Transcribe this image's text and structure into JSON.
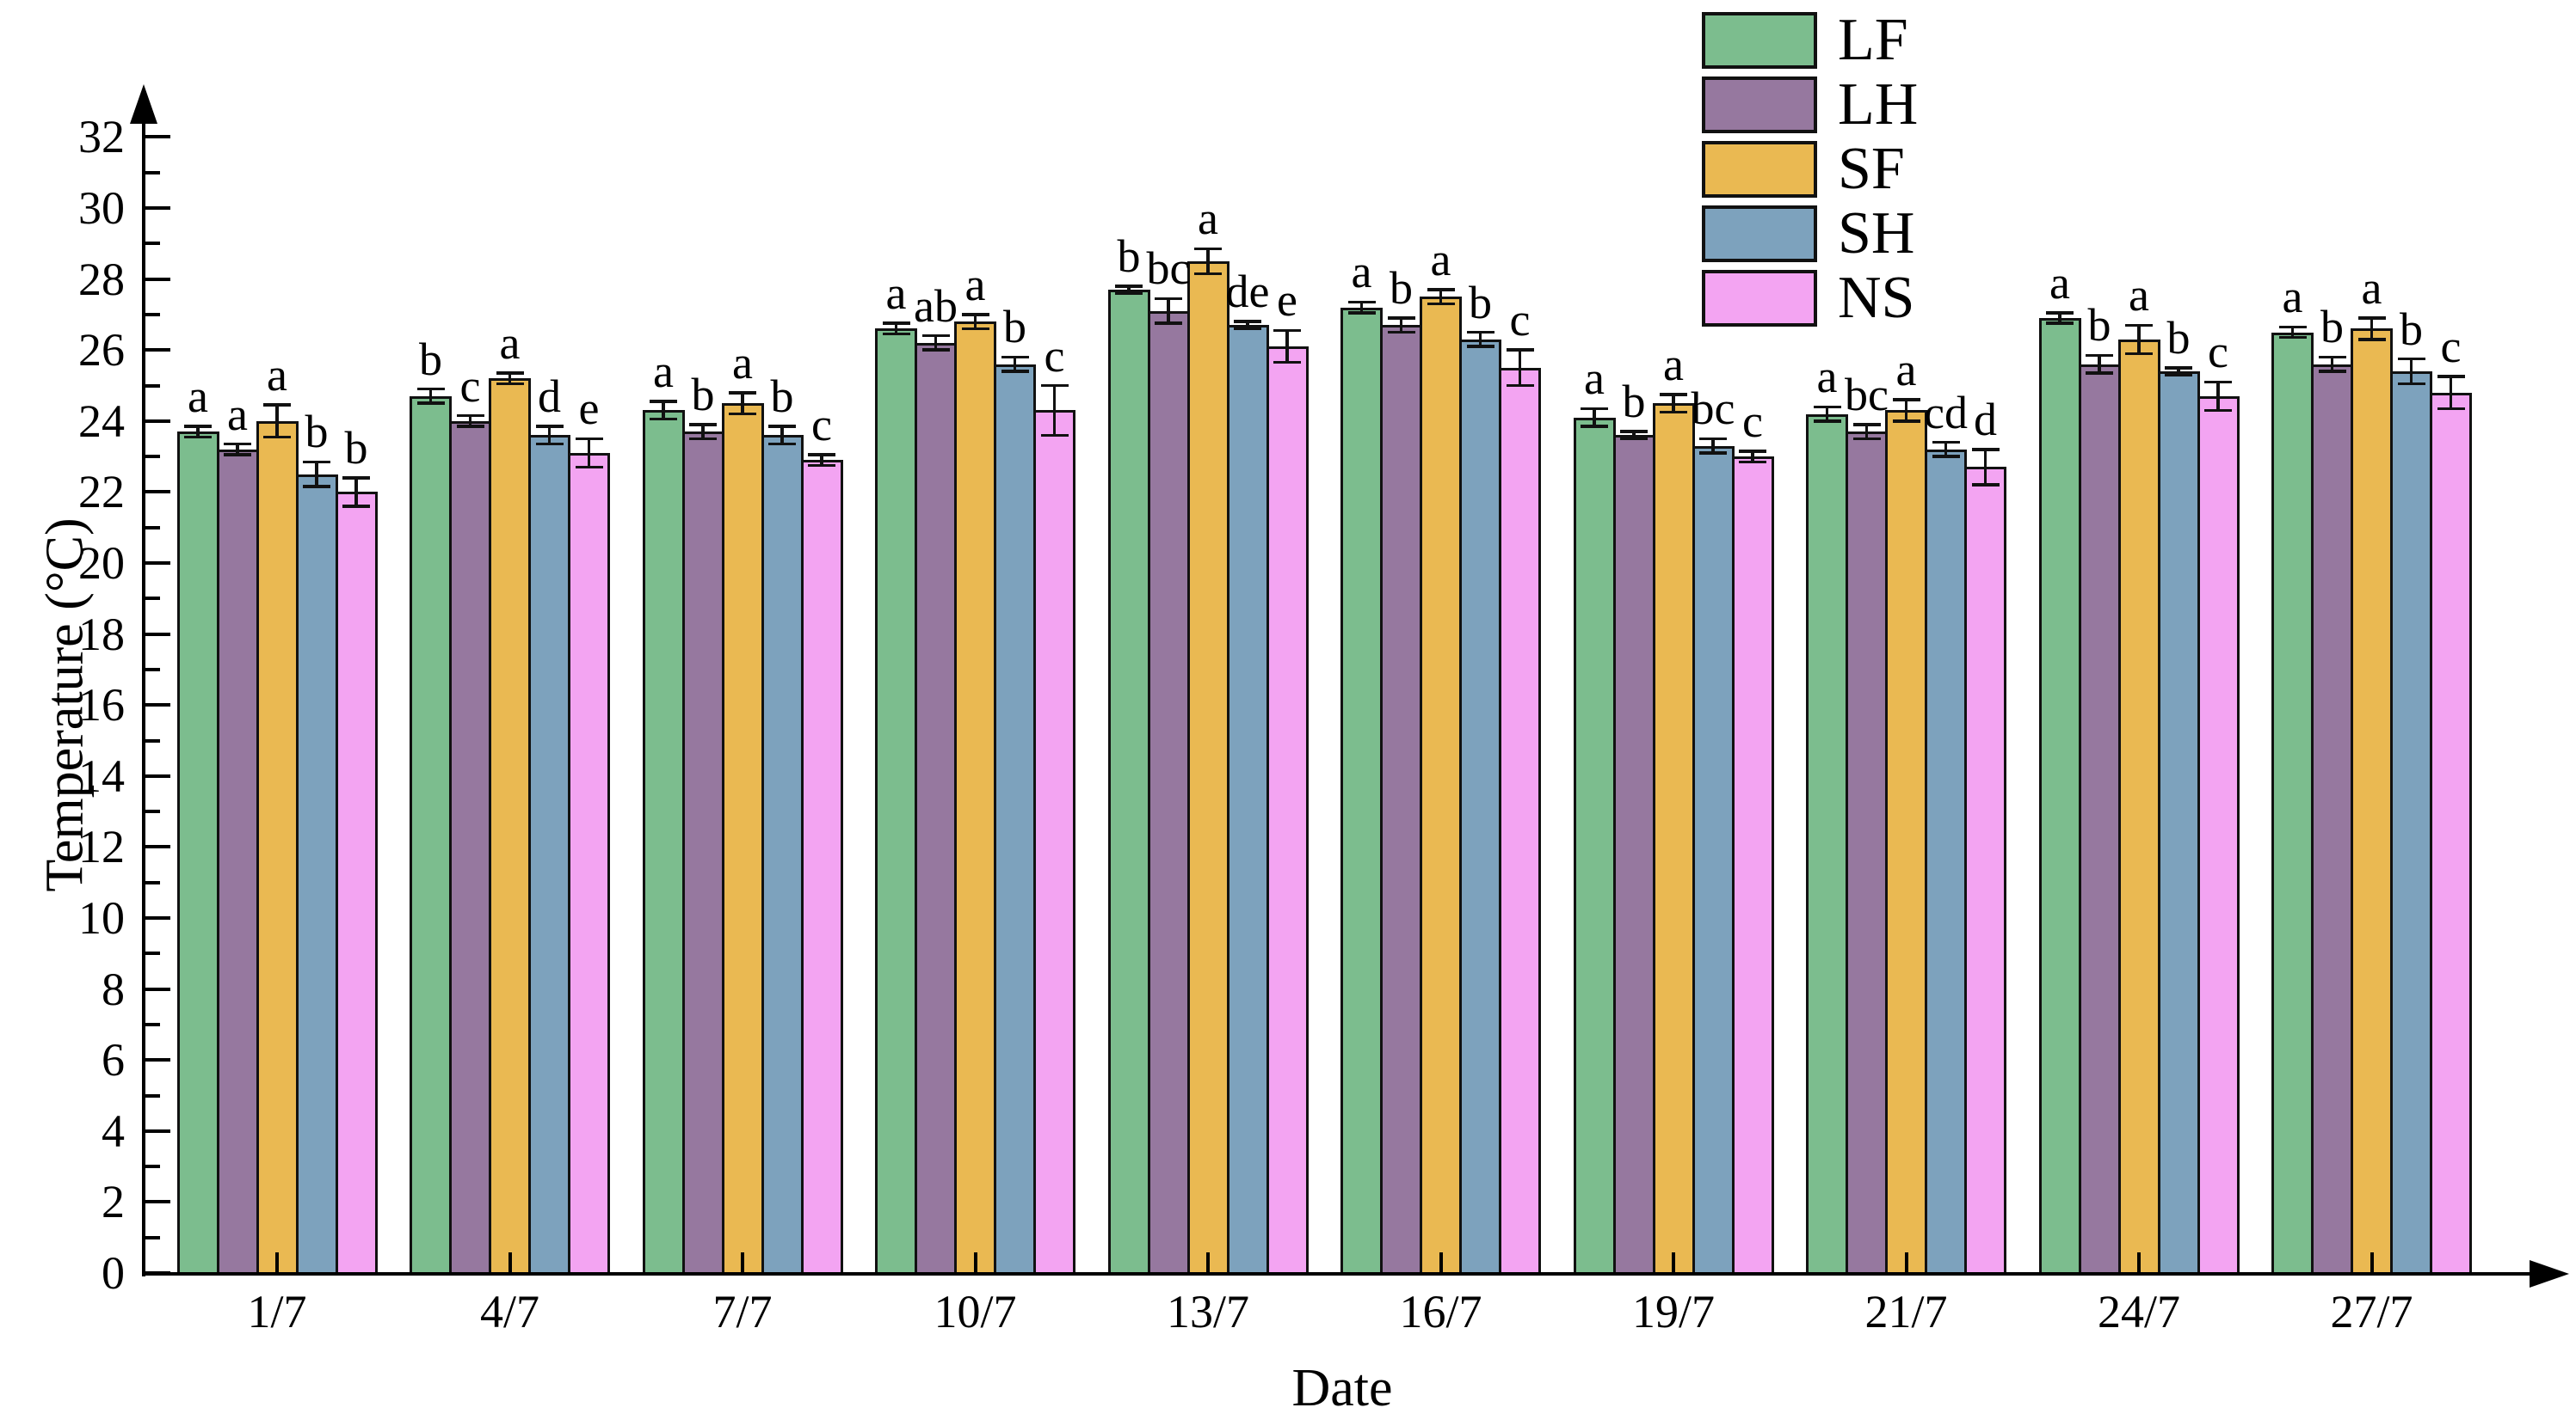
{
  "figure": {
    "background": "#ffffff",
    "ink": "#000000"
  },
  "chart_data": {
    "type": "bar",
    "title": "",
    "xlabel": "Date",
    "ylabel": "Temperature (°C)",
    "ylim": [
      0,
      32
    ],
    "ytick_step": 2,
    "yminor_step": 1,
    "grid": false,
    "legend_position": "top-right",
    "error_bars": true,
    "categories": [
      "1/7",
      "4/7",
      "7/7",
      "10/7",
      "13/7",
      "16/7",
      "19/7",
      "21/7",
      "24/7",
      "27/7"
    ],
    "series": [
      {
        "name": "LF",
        "color": "#7cbd8e",
        "values": [
          23.7,
          24.7,
          24.3,
          26.6,
          27.7,
          27.2,
          24.1,
          24.2,
          26.9,
          26.5
        ],
        "errors": [
          0.15,
          0.2,
          0.25,
          0.15,
          0.1,
          0.15,
          0.25,
          0.2,
          0.15,
          0.15
        ],
        "letters": [
          "a",
          "b",
          "a",
          "a",
          "b",
          "a",
          "a",
          "a",
          "a",
          "a"
        ]
      },
      {
        "name": "LH",
        "color": "#96789f",
        "values": [
          23.2,
          24.0,
          23.7,
          26.2,
          27.1,
          26.7,
          23.6,
          23.7,
          25.6,
          25.6
        ],
        "errors": [
          0.15,
          0.15,
          0.2,
          0.2,
          0.35,
          0.2,
          0.1,
          0.2,
          0.25,
          0.2
        ],
        "letters": [
          "a",
          "c",
          "b",
          "ab",
          "bc",
          "b",
          "b",
          "bc",
          "b",
          "b"
        ]
      },
      {
        "name": "SF",
        "color": "#eab952",
        "values": [
          24.0,
          25.2,
          24.5,
          26.8,
          28.5,
          27.5,
          24.5,
          24.3,
          26.3,
          26.6
        ],
        "errors": [
          0.45,
          0.15,
          0.3,
          0.2,
          0.35,
          0.2,
          0.25,
          0.3,
          0.4,
          0.3
        ],
        "letters": [
          "a",
          "a",
          "a",
          "a",
          "a",
          "a",
          "a",
          "a",
          "a",
          "a"
        ]
      },
      {
        "name": "SH",
        "color": "#7da2bd",
        "values": [
          22.5,
          23.6,
          23.6,
          25.6,
          26.7,
          26.3,
          23.3,
          23.2,
          25.4,
          25.4
        ],
        "errors": [
          0.35,
          0.25,
          0.25,
          0.2,
          0.1,
          0.2,
          0.2,
          0.2,
          0.1,
          0.35
        ],
        "letters": [
          "b",
          "d",
          "b",
          "b",
          "de",
          "b",
          "bc",
          "cd",
          "b",
          "b"
        ]
      },
      {
        "name": "NS",
        "color": "#f3a4f2",
        "values": [
          22.0,
          23.1,
          22.9,
          24.3,
          26.1,
          25.5,
          23.0,
          22.7,
          24.7,
          24.8
        ],
        "errors": [
          0.4,
          0.4,
          0.15,
          0.7,
          0.45,
          0.5,
          0.15,
          0.5,
          0.4,
          0.45
        ],
        "letters": [
          "b",
          "e",
          "c",
          "c",
          "e",
          "c",
          "c",
          "d",
          "c",
          "c"
        ]
      }
    ]
  }
}
